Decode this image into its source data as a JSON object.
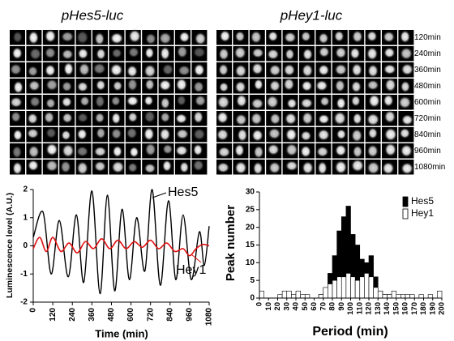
{
  "image_panels": [
    {
      "title": "pHes5-luc"
    },
    {
      "title": "pHey1-luc"
    }
  ],
  "time_labels": [
    "120min",
    "240min",
    "360min",
    "480min",
    "600min",
    "720min",
    "840min",
    "960min",
    "1080min"
  ],
  "chart_data": [
    {
      "type": "line",
      "ylabel": "Luminescence level (A.U.)",
      "xlabel": "Time (min)",
      "xlim": [
        0,
        1080
      ],
      "xticks": [
        0,
        120,
        240,
        360,
        480,
        600,
        720,
        840,
        960,
        1080
      ],
      "ylim": [
        -2,
        2
      ],
      "yticks": [
        -2,
        -1,
        0,
        1,
        2
      ],
      "series": [
        {
          "name": "Hes5",
          "color": "#000000",
          "x": [
            0,
            60,
            110,
            160,
            215,
            265,
            310,
            360,
            410,
            455,
            500,
            545,
            590,
            635,
            685,
            730,
            780,
            830,
            875,
            920,
            970,
            1020,
            1050,
            1080
          ],
          "values": [
            0.3,
            1.2,
            -1.0,
            0.9,
            -1.1,
            1.1,
            -1.3,
            1.95,
            -1.7,
            1.8,
            -1.6,
            1.3,
            -1.2,
            1.0,
            -0.9,
            2.0,
            -1.4,
            1.6,
            -1.2,
            1.1,
            -1.2,
            0.5,
            -0.7,
            0.7
          ]
        },
        {
          "name": "Hey1",
          "color": "#e01010",
          "x": [
            0,
            40,
            80,
            120,
            170,
            220,
            270,
            320,
            370,
            420,
            470,
            520,
            570,
            620,
            670,
            720,
            770,
            820,
            870,
            920,
            960,
            1000,
            1040,
            1080
          ],
          "values": [
            -0.1,
            0.3,
            -0.2,
            0.3,
            -0.2,
            0.1,
            -0.25,
            0.15,
            -0.1,
            0.25,
            -0.1,
            0.2,
            -0.1,
            0.15,
            -0.05,
            0.2,
            -0.1,
            0.1,
            -0.2,
            -0.1,
            -0.35,
            -0.1,
            0.05,
            0.0
          ]
        }
      ]
    },
    {
      "type": "histogram",
      "ylabel": "Peak number",
      "xlabel": "Period (min)",
      "xlim": [
        0,
        200
      ],
      "xticks": [
        0,
        10,
        20,
        30,
        40,
        50,
        60,
        70,
        80,
        90,
        100,
        110,
        120,
        130,
        140,
        150,
        160,
        170,
        180,
        190,
        200
      ],
      "ylim": [
        0,
        30
      ],
      "yticks": [
        0,
        5,
        10,
        15,
        20,
        25,
        30
      ],
      "legend": "top-right",
      "bins": [
        0,
        5,
        10,
        15,
        20,
        25,
        30,
        35,
        40,
        45,
        50,
        55,
        60,
        65,
        70,
        75,
        80,
        85,
        90,
        95,
        100,
        105,
        110,
        115,
        120,
        125,
        130,
        135,
        140,
        145,
        150,
        155,
        160,
        165,
        170,
        175,
        180,
        185,
        190,
        195,
        200
      ],
      "series": [
        {
          "name": "Hes5",
          "color": "#000000",
          "values": [
            0,
            0,
            0,
            0,
            0,
            0,
            0,
            0,
            0,
            0,
            0,
            0,
            0,
            1,
            2,
            7,
            12,
            19,
            23,
            26,
            18,
            15,
            11,
            10,
            12,
            6,
            2,
            1,
            1,
            0,
            0,
            0,
            0,
            0,
            0,
            0,
            0,
            0,
            0,
            0
          ]
        },
        {
          "name": "Hey1",
          "color": "#ffffff",
          "values": [
            2,
            0,
            0,
            0,
            1,
            2,
            2,
            1,
            2,
            1,
            1,
            0,
            0,
            1,
            3,
            4,
            5,
            6,
            6,
            7,
            6,
            5,
            6,
            7,
            6,
            3,
            2,
            1,
            1,
            2,
            1,
            1,
            1,
            1,
            0,
            1,
            0,
            1,
            0,
            2
          ]
        }
      ]
    }
  ]
}
